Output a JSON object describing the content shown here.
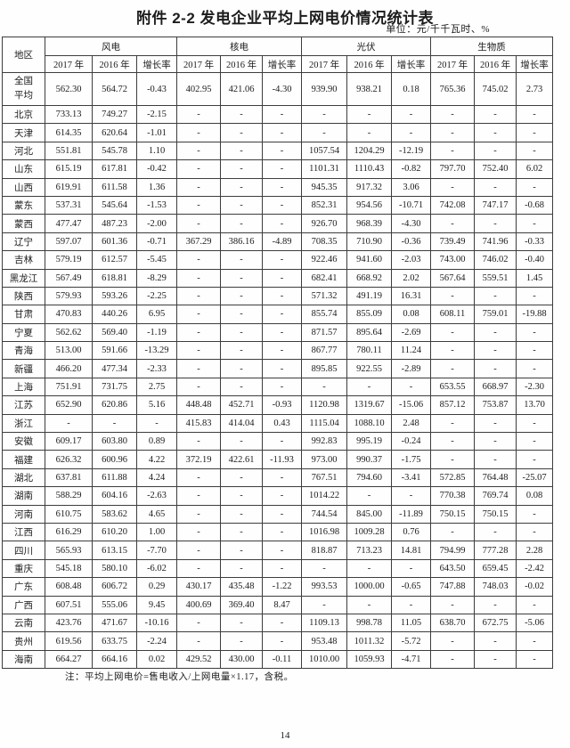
{
  "document": {
    "title": "附件 2-2  发电企业平均上网电价情况统计表",
    "unit_note": "单位：元/千千瓦时、%",
    "footnote": "注：平均上网电价=售电收入/上网电量×1.17，含税。",
    "page_number": "14"
  },
  "table": {
    "corner_header": "地区",
    "group_headers": [
      "风电",
      "核电",
      "光伏",
      "生物质"
    ],
    "year_headers": [
      "2017 年",
      "2016 年",
      "增长率"
    ],
    "rows": [
      {
        "region": "全国平均",
        "values": [
          "562.30",
          "564.72",
          "-0.43",
          "402.95",
          "421.06",
          "-4.30",
          "939.90",
          "938.21",
          "0.18",
          "765.36",
          "745.02",
          "2.73"
        ]
      },
      {
        "region": "北京",
        "values": [
          "733.13",
          "749.27",
          "-2.15",
          "-",
          "-",
          "-",
          "-",
          "-",
          "-",
          "-",
          "-",
          "-"
        ]
      },
      {
        "region": "天津",
        "values": [
          "614.35",
          "620.64",
          "-1.01",
          "-",
          "-",
          "-",
          "-",
          "-",
          "-",
          "-",
          "-",
          "-"
        ]
      },
      {
        "region": "河北",
        "values": [
          "551.81",
          "545.78",
          "1.10",
          "-",
          "-",
          "-",
          "1057.54",
          "1204.29",
          "-12.19",
          "-",
          "-",
          "-"
        ]
      },
      {
        "region": "山东",
        "values": [
          "615.19",
          "617.81",
          "-0.42",
          "-",
          "-",
          "-",
          "1101.31",
          "1110.43",
          "-0.82",
          "797.70",
          "752.40",
          "6.02"
        ]
      },
      {
        "region": "山西",
        "values": [
          "619.91",
          "611.58",
          "1.36",
          "-",
          "-",
          "-",
          "945.35",
          "917.32",
          "3.06",
          "-",
          "-",
          "-"
        ]
      },
      {
        "region": "蒙东",
        "values": [
          "537.31",
          "545.64",
          "-1.53",
          "-",
          "-",
          "-",
          "852.31",
          "954.56",
          "-10.71",
          "742.08",
          "747.17",
          "-0.68"
        ]
      },
      {
        "region": "蒙西",
        "values": [
          "477.47",
          "487.23",
          "-2.00",
          "-",
          "-",
          "-",
          "926.70",
          "968.39",
          "-4.30",
          "-",
          "-",
          "-"
        ]
      },
      {
        "region": "辽宁",
        "values": [
          "597.07",
          "601.36",
          "-0.71",
          "367.29",
          "386.16",
          "-4.89",
          "708.35",
          "710.90",
          "-0.36",
          "739.49",
          "741.96",
          "-0.33"
        ]
      },
      {
        "region": "吉林",
        "values": [
          "579.19",
          "612.57",
          "-5.45",
          "-",
          "-",
          "-",
          "922.46",
          "941.60",
          "-2.03",
          "743.00",
          "746.02",
          "-0.40"
        ]
      },
      {
        "region": "黑龙江",
        "values": [
          "567.49",
          "618.81",
          "-8.29",
          "-",
          "-",
          "-",
          "682.41",
          "668.92",
          "2.02",
          "567.64",
          "559.51",
          "1.45"
        ]
      },
      {
        "region": "陕西",
        "values": [
          "579.93",
          "593.26",
          "-2.25",
          "-",
          "-",
          "-",
          "571.32",
          "491.19",
          "16.31",
          "-",
          "-",
          "-"
        ]
      },
      {
        "region": "甘肃",
        "values": [
          "470.83",
          "440.26",
          "6.95",
          "-",
          "-",
          "-",
          "855.74",
          "855.09",
          "0.08",
          "608.11",
          "759.01",
          "-19.88"
        ]
      },
      {
        "region": "宁夏",
        "values": [
          "562.62",
          "569.40",
          "-1.19",
          "-",
          "-",
          "-",
          "871.57",
          "895.64",
          "-2.69",
          "-",
          "-",
          "-"
        ]
      },
      {
        "region": "青海",
        "values": [
          "513.00",
          "591.66",
          "-13.29",
          "-",
          "-",
          "-",
          "867.77",
          "780.11",
          "11.24",
          "-",
          "-",
          "-"
        ]
      },
      {
        "region": "新疆",
        "values": [
          "466.20",
          "477.34",
          "-2.33",
          "-",
          "-",
          "-",
          "895.85",
          "922.55",
          "-2.89",
          "-",
          "-",
          "-"
        ]
      },
      {
        "region": "上海",
        "values": [
          "751.91",
          "731.75",
          "2.75",
          "-",
          "-",
          "-",
          "-",
          "-",
          "-",
          "653.55",
          "668.97",
          "-2.30"
        ]
      },
      {
        "region": "江苏",
        "values": [
          "652.90",
          "620.86",
          "5.16",
          "448.48",
          "452.71",
          "-0.93",
          "1120.98",
          "1319.67",
          "-15.06",
          "857.12",
          "753.87",
          "13.70"
        ]
      },
      {
        "region": "浙江",
        "values": [
          "-",
          "-",
          "-",
          "415.83",
          "414.04",
          "0.43",
          "1115.04",
          "1088.10",
          "2.48",
          "-",
          "-",
          "-"
        ]
      },
      {
        "region": "安徽",
        "values": [
          "609.17",
          "603.80",
          "0.89",
          "-",
          "-",
          "-",
          "992.83",
          "995.19",
          "-0.24",
          "-",
          "-",
          "-"
        ]
      },
      {
        "region": "福建",
        "values": [
          "626.32",
          "600.96",
          "4.22",
          "372.19",
          "422.61",
          "-11.93",
          "973.00",
          "990.37",
          "-1.75",
          "-",
          "-",
          "-"
        ]
      },
      {
        "region": "湖北",
        "values": [
          "637.81",
          "611.88",
          "4.24",
          "-",
          "-",
          "-",
          "767.51",
          "794.60",
          "-3.41",
          "572.85",
          "764.48",
          "-25.07"
        ]
      },
      {
        "region": "湖南",
        "values": [
          "588.29",
          "604.16",
          "-2.63",
          "-",
          "-",
          "-",
          "1014.22",
          "-",
          "-",
          "770.38",
          "769.74",
          "0.08"
        ]
      },
      {
        "region": "河南",
        "values": [
          "610.75",
          "583.62",
          "4.65",
          "-",
          "-",
          "-",
          "744.54",
          "845.00",
          "-11.89",
          "750.15",
          "750.15",
          "-"
        ]
      },
      {
        "region": "江西",
        "values": [
          "616.29",
          "610.20",
          "1.00",
          "-",
          "-",
          "-",
          "1016.98",
          "1009.28",
          "0.76",
          "-",
          "-",
          "-"
        ]
      },
      {
        "region": "四川",
        "values": [
          "565.93",
          "613.15",
          "-7.70",
          "-",
          "-",
          "-",
          "818.87",
          "713.23",
          "14.81",
          "794.99",
          "777.28",
          "2.28"
        ]
      },
      {
        "region": "重庆",
        "values": [
          "545.18",
          "580.10",
          "-6.02",
          "-",
          "-",
          "-",
          "-",
          "-",
          "-",
          "643.50",
          "659.45",
          "-2.42"
        ]
      },
      {
        "region": "广东",
        "values": [
          "608.48",
          "606.72",
          "0.29",
          "430.17",
          "435.48",
          "-1.22",
          "993.53",
          "1000.00",
          "-0.65",
          "747.88",
          "748.03",
          "-0.02"
        ]
      },
      {
        "region": "广西",
        "values": [
          "607.51",
          "555.06",
          "9.45",
          "400.69",
          "369.40",
          "8.47",
          "-",
          "-",
          "-",
          "-",
          "-",
          "-"
        ]
      },
      {
        "region": "云南",
        "values": [
          "423.76",
          "471.67",
          "-10.16",
          "-",
          "-",
          "-",
          "1109.13",
          "998.78",
          "11.05",
          "638.70",
          "672.75",
          "-5.06"
        ]
      },
      {
        "region": "贵州",
        "values": [
          "619.56",
          "633.75",
          "-2.24",
          "-",
          "-",
          "-",
          "953.48",
          "1011.32",
          "-5.72",
          "-",
          "-",
          "-"
        ]
      },
      {
        "region": "海南",
        "values": [
          "664.27",
          "664.16",
          "0.02",
          "429.52",
          "430.00",
          "-0.11",
          "1010.00",
          "1059.93",
          "-4.71",
          "-",
          "-",
          "-"
        ]
      }
    ]
  }
}
